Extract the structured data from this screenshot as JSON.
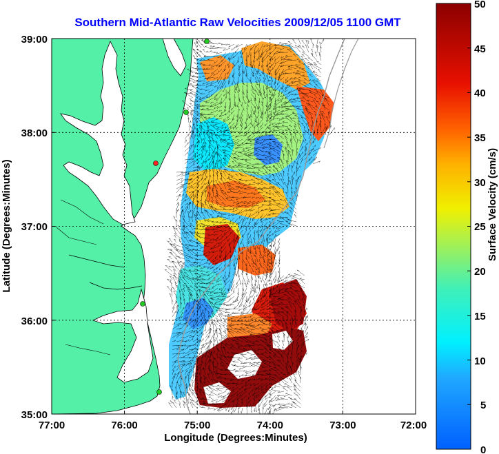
{
  "title": "Southern Mid-Atlantic Raw Velocities 2009/12/05 1100 GMT",
  "xlabel": "Longitude (Degrees:Minutes)",
  "ylabel": "Latitude (Degrees:Minutes)",
  "colorbar_label": "Surface Velocity (cm/s)",
  "x_ticks": [
    "77:00",
    "76:00",
    "75:00",
    "74:00",
    "73:00",
    "72:00"
  ],
  "y_ticks": [
    "39:00",
    "38:00",
    "37:00",
    "36:00",
    "35:00"
  ],
  "colorbar_ticks": [
    "50",
    "45",
    "40",
    "35",
    "30",
    "25",
    "20",
    "15",
    "10",
    "5",
    "0"
  ],
  "colors": {
    "title": "#0000ff",
    "land": "#55f0a8",
    "station": "#22cc22",
    "station_active": "#ff2222",
    "isobath": "#999999"
  },
  "chart_data": {
    "type": "heatmap",
    "title": "Southern Mid-Atlantic Raw Velocities 2009/12/05 1100 GMT",
    "xlabel": "Longitude (Degrees:Minutes)",
    "ylabel": "Latitude (Degrees:Minutes)",
    "xlim": [
      -77,
      -72
    ],
    "ylim": [
      35,
      39
    ],
    "colorbar": {
      "label": "Surface Velocity (cm/s)",
      "range": [
        0,
        50
      ]
    },
    "grid": true,
    "stations": [
      {
        "lon": -75.08,
        "lat": 38.97
      },
      {
        "lon": -75.15,
        "lat": 38.25
      },
      {
        "lon": -75.52,
        "lat": 37.68
      },
      {
        "lon": -75.7,
        "lat": 36.2
      },
      {
        "lon": -75.48,
        "lat": 35.25
      }
    ]
  }
}
